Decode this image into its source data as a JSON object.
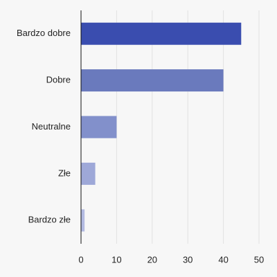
{
  "chart_data": {
    "type": "bar",
    "orientation": "horizontal",
    "categories": [
      "Bardzo dobre",
      "Dobre",
      "Neutralne",
      "Złe",
      "Bardzo złe"
    ],
    "values": [
      45,
      40,
      10,
      4,
      1
    ],
    "colors": [
      "#3a4daf",
      "#6a7abd",
      "#8290cb",
      "#9ea8d8",
      "#b3bbe2"
    ],
    "xlim": [
      0,
      50
    ],
    "xticks": [
      0,
      10,
      20,
      30,
      40,
      50
    ],
    "grid": true
  }
}
